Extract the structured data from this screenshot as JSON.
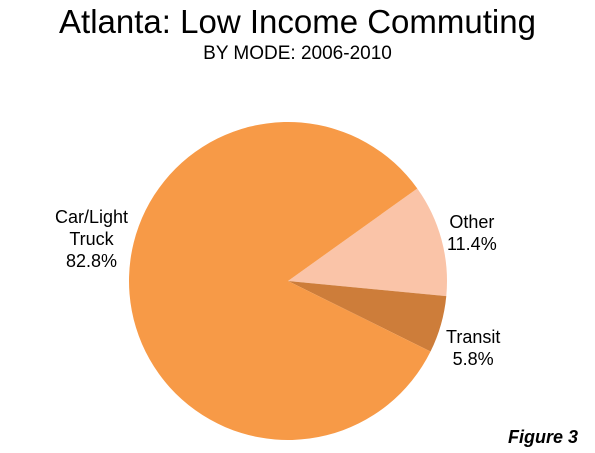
{
  "chart_data": {
    "type": "pie",
    "title": "Atlanta: Low Income Commuting",
    "subtitle": "BY MODE: 2006-2010",
    "slices": [
      {
        "label": "Other",
        "label_lines": [
          "Other"
        ],
        "value": 11.4,
        "value_label": "11.4%",
        "color": "#FAC4A8"
      },
      {
        "label": "Transit",
        "label_lines": [
          "Transit"
        ],
        "value": 5.8,
        "value_label": "5.8%",
        "color": "#CD7D3A"
      },
      {
        "label": "Car/Light Truck",
        "label_lines": [
          "Car/Light",
          "Truck"
        ],
        "value": 82.8,
        "value_label": "82.8%",
        "color": "#F79A47"
      }
    ],
    "legend": "none",
    "data_labels": "outside"
  },
  "figure_label": "Figure 3"
}
